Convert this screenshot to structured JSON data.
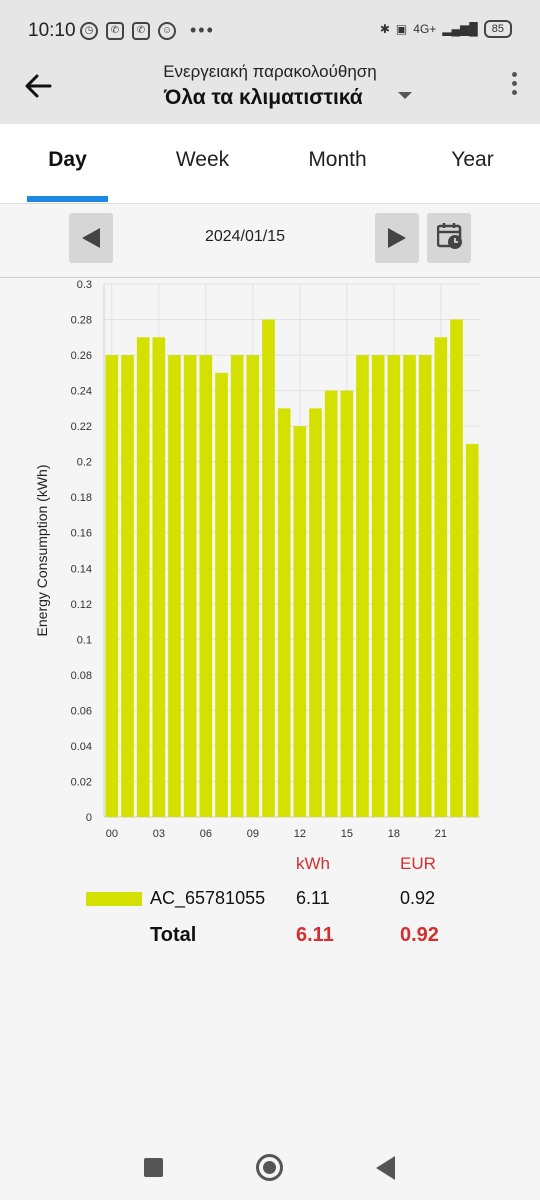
{
  "statusbar": {
    "time": "10:10",
    "battery": "85",
    "network": "4G+"
  },
  "header": {
    "subtitle": "Ενεργειακή παρακολούθηση",
    "title": "Όλα τα κλιματιστικά"
  },
  "tabs": [
    {
      "label": "Day",
      "active": true
    },
    {
      "label": "Week",
      "active": false
    },
    {
      "label": "Month",
      "active": false
    },
    {
      "label": "Year",
      "active": false
    }
  ],
  "date_nav": {
    "date": "2024/01/15"
  },
  "chart_data": {
    "type": "bar",
    "ylabel": "Energy Consumption (kWh)",
    "ylim": [
      0,
      0.3
    ],
    "yticks": [
      "0",
      "0.02",
      "0.04",
      "0.06",
      "0.08",
      "0.1",
      "0.12",
      "0.14",
      "0.16",
      "0.18",
      "0.2",
      "0.22",
      "0.24",
      "0.26",
      "0.28",
      "0.3"
    ],
    "xticks": [
      "00",
      "03",
      "06",
      "09",
      "12",
      "15",
      "18",
      "21"
    ],
    "categories": [
      "00",
      "01",
      "02",
      "03",
      "04",
      "05",
      "06",
      "07",
      "08",
      "09",
      "10",
      "11",
      "12",
      "13",
      "14",
      "15",
      "16",
      "17",
      "18",
      "19",
      "20",
      "21",
      "22",
      "23"
    ],
    "values": [
      0.26,
      0.26,
      0.27,
      0.27,
      0.26,
      0.26,
      0.26,
      0.25,
      0.26,
      0.26,
      0.28,
      0.23,
      0.22,
      0.23,
      0.24,
      0.24,
      0.26,
      0.26,
      0.26,
      0.26,
      0.26,
      0.27,
      0.28,
      0.21
    ],
    "color": "#d4e000",
    "grid": true
  },
  "summary": {
    "col_kwh": "kWh",
    "col_eur": "EUR",
    "rows": [
      {
        "name": "AC_65781055",
        "kwh": "6.11",
        "eur": "0.92"
      }
    ],
    "total": {
      "name": "Total",
      "kwh": "6.11",
      "eur": "0.92"
    }
  }
}
